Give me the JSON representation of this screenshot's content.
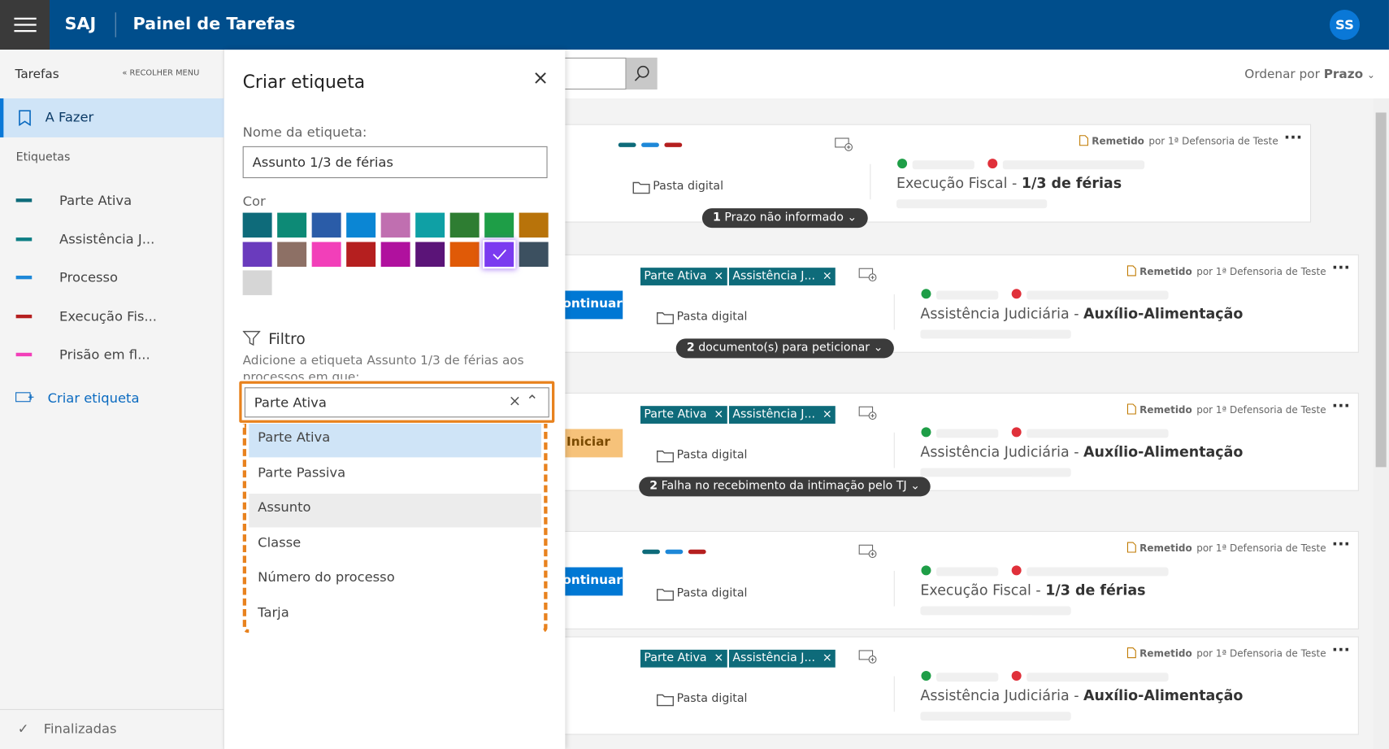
{
  "header": {
    "app": "SAJ",
    "title": "Painel de Tarefas",
    "avatar": "SS"
  },
  "sidebar": {
    "tasks": "Tarefas",
    "collapse": "RECOLHER MENU",
    "active": "A Fazer",
    "labels_heading": "Etiquetas",
    "labels": [
      {
        "name": "Parte Ativa",
        "color": "#0e6b7a"
      },
      {
        "name": "Assistência J...",
        "color": "#0d7e84"
      },
      {
        "name": "Processo",
        "color": "#1e88d8"
      },
      {
        "name": "Execução Fis...",
        "color": "#b51f1f"
      },
      {
        "name": "Prisão em fl...",
        "color": "#f23fb9"
      }
    ],
    "create": "Criar etiqueta",
    "finished": "Finalizadas"
  },
  "panel": {
    "title": "Criar etiqueta",
    "name_label": "Nome da etiqueta:",
    "name_value": "Assunto 1/3 de férias",
    "color_label": "Cor",
    "colors": [
      "#0e6b7a",
      "#0d8a76",
      "#2a5ca8",
      "#0b86d4",
      "#c06fb0",
      "#0fa0a5",
      "#2e7d32",
      "#1e9e47",
      "#b8730a",
      "#6a3bbd",
      "#8d7065",
      "#f23fb9",
      "#b51f1f",
      "#b0119e",
      "#5b1478",
      "#e05a07",
      "#7b3bf0",
      "#3c5060",
      "#d6d6d6"
    ],
    "selected_color": 16,
    "filter_title": "Filtro",
    "filter_desc": "Adicione a etiqueta Assunto 1/3 de férias aos processos em que:",
    "filter_value": "Parte Ativa",
    "options": [
      "Parte Ativa",
      "Parte Passiva",
      "Assunto",
      "Classe",
      "Número do processo",
      "Tarja"
    ]
  },
  "toolbar": {
    "sort_label": "Ordenar por",
    "sort_value": "Prazo"
  },
  "cards": [
    {
      "tag_colors": [
        "#0e6b7a",
        "#1e88d8",
        "#b51f1f"
      ],
      "folder": "Pasta digital",
      "status": "Remetido",
      "by": "por 1ª Defensoria de Teste",
      "subject": "Execução Fiscal",
      "detail": "1/3 de férias",
      "pill_count": "1",
      "pill_text": "Prazo não informado"
    },
    {
      "button": "Continuar",
      "tags": [
        "Parte Ativa",
        "Assistência J..."
      ],
      "folder": "Pasta digital",
      "status": "Remetido",
      "by": "por 1ª Defensoria de Teste",
      "subject": "Assistência Judiciária",
      "detail": "Auxílio-Alimentação",
      "pill_count": "2",
      "pill_text": "documento(s) para peticionar"
    },
    {
      "button": "Iniciar",
      "tags": [
        "Parte Ativa",
        "Assistência J..."
      ],
      "folder": "Pasta digital",
      "status": "Remetido",
      "by": "por 1ª Defensoria de Teste",
      "subject": "Assistência Judiciária",
      "detail": "Auxílio-Alimentação",
      "pill_count": "2",
      "pill_text": "Falha no recebimento da intimação pelo TJ"
    },
    {
      "button": "Continuar",
      "tag_colors": [
        "#0e6b7a",
        "#1e88d8",
        "#b51f1f"
      ],
      "folder": "Pasta digital",
      "status": "Remetido",
      "by": "por 1ª Defensoria de Teste",
      "subject": "Execução Fiscal",
      "detail": "1/3 de férias"
    },
    {
      "tags": [
        "Parte Ativa",
        "Assistência J..."
      ],
      "folder": "Pasta digital",
      "status": "Remetido",
      "by": "por 1ª Defensoria de Teste",
      "subject": "Assistência Judiciária",
      "detail": "Auxílio-Alimentação"
    }
  ]
}
